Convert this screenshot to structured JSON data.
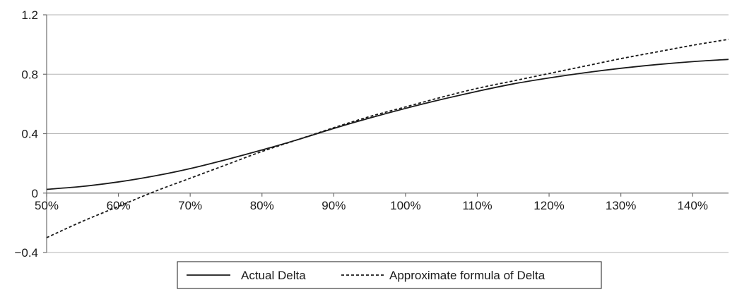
{
  "chart_data": {
    "type": "line",
    "title": "",
    "xlabel": "",
    "ylabel": "",
    "xlim": [
      50,
      145
    ],
    "ylim": [
      -0.4,
      1.2
    ],
    "x_ticks": [
      50,
      60,
      70,
      80,
      90,
      100,
      110,
      120,
      130,
      140
    ],
    "x_tick_labels": [
      "50%",
      "60%",
      "70%",
      "80%",
      "90%",
      "100%",
      "110%",
      "120%",
      "130%",
      "140%"
    ],
    "y_ticks": [
      -0.4,
      0,
      0.4,
      0.8,
      1.2
    ],
    "y_tick_labels": [
      "−0.4",
      "0",
      "0.4",
      "0.8",
      "1.2"
    ],
    "grid": "horizontal",
    "legend_position": "bottom",
    "series": [
      {
        "name": "Actual Delta",
        "style": "solid",
        "color": "#1a1a1a",
        "x": [
          50,
          55,
          60,
          65,
          70,
          75,
          80,
          85,
          90,
          95,
          100,
          105,
          110,
          115,
          120,
          125,
          130,
          135,
          140,
          145
        ],
        "values": [
          0.025,
          0.045,
          0.075,
          0.115,
          0.165,
          0.225,
          0.29,
          0.36,
          0.435,
          0.505,
          0.57,
          0.63,
          0.685,
          0.735,
          0.775,
          0.81,
          0.84,
          0.865,
          0.885,
          0.9
        ]
      },
      {
        "name": "Approximate formula of Delta",
        "style": "dashed",
        "color": "#1a1a1a",
        "x": [
          50,
          55,
          60,
          65,
          70,
          75,
          80,
          85,
          90,
          95,
          100,
          105,
          110,
          115,
          120,
          125,
          130,
          135,
          140,
          145
        ],
        "values": [
          -0.3,
          -0.19,
          -0.09,
          0.01,
          0.1,
          0.19,
          0.28,
          0.36,
          0.44,
          0.515,
          0.58,
          0.645,
          0.705,
          0.755,
          0.805,
          0.855,
          0.905,
          0.95,
          0.995,
          1.035
        ]
      }
    ]
  }
}
